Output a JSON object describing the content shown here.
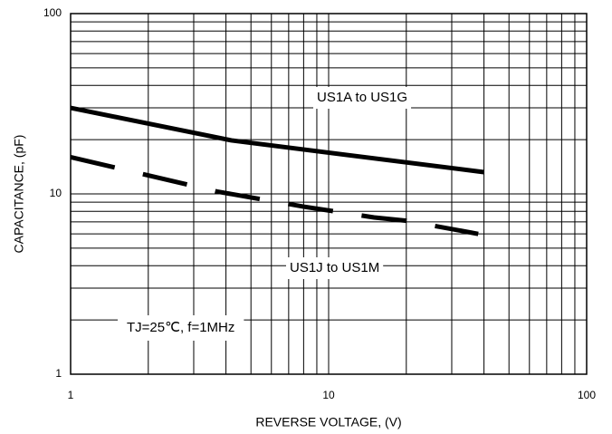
{
  "chart_data": {
    "type": "line",
    "log_x": true,
    "log_y": true,
    "grid": true,
    "xlabel": "REVERSE VOLTAGE, (V)",
    "ylabel": "CAPACITANCE, (pF)",
    "xlim": [
      1,
      100
    ],
    "ylim": [
      1,
      100
    ],
    "xticks": [
      1,
      10,
      100
    ],
    "yticks": [
      1,
      10,
      100
    ],
    "xticks_minor": [
      2,
      3,
      4,
      5,
      6,
      7,
      8,
      9,
      20,
      30,
      40,
      50,
      60,
      70,
      80,
      90
    ],
    "yticks_minor": [
      2,
      3,
      4,
      5,
      6,
      7,
      8,
      9,
      20,
      30,
      40,
      50,
      60,
      70,
      80,
      90
    ],
    "series": [
      {
        "name": "US1A to US1G",
        "color": "#000000",
        "style": "solid",
        "x": [
          1,
          4.2,
          40
        ],
        "values": [
          30,
          19.8,
          13.2
        ]
      },
      {
        "name": "US1J to US1M",
        "color": "#000000",
        "style": "dashed",
        "x": [
          1,
          3.7,
          8,
          15,
          20,
          38
        ],
        "values": [
          16,
          10.3,
          8.5,
          7.4,
          7.1,
          6.0
        ]
      }
    ],
    "annotations": [
      "TJ=25℃, f=1MHz"
    ]
  }
}
